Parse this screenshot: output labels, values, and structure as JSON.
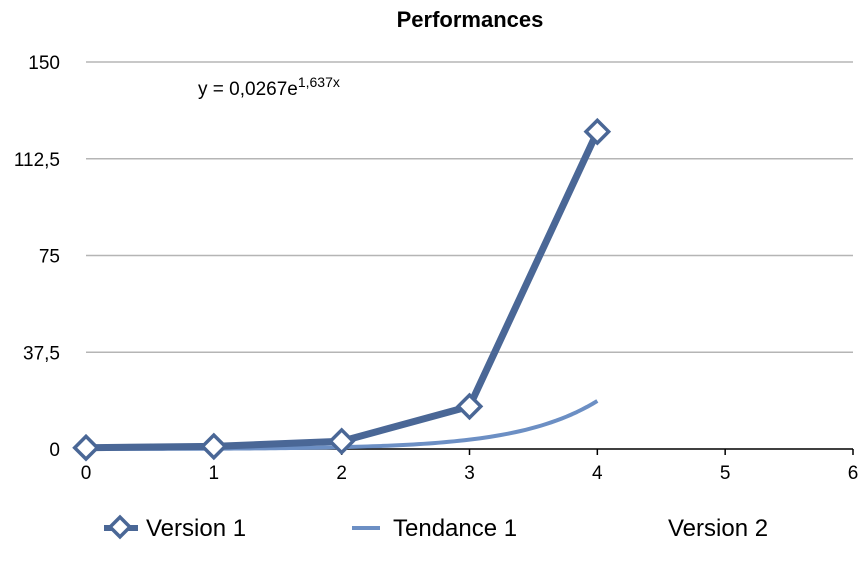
{
  "chart_data": {
    "type": "line",
    "title": "Performances",
    "xlim": [
      0,
      6
    ],
    "ylim": [
      0,
      150
    ],
    "x_ticks": [
      "0",
      "1",
      "2",
      "3",
      "4",
      "5",
      "6"
    ],
    "y_ticks": [
      "0",
      "37,5",
      "75",
      "112,5",
      "150"
    ],
    "grid": true,
    "legend_position": "bottom",
    "series": [
      {
        "name": "Version 1",
        "kind": "line-markers",
        "marker": "diamond",
        "color": "#4a6796",
        "x": [
          0,
          1,
          2,
          3,
          4
        ],
        "y": [
          0.5,
          1,
          3,
          16.5,
          123
        ]
      },
      {
        "name": "Tendance 1",
        "kind": "trendline",
        "color": "#6c8fc4",
        "equation": {
          "a": 0.0267,
          "b": 1.637
        },
        "x_range": [
          0,
          4
        ]
      },
      {
        "name": "Version 2",
        "kind": "empty",
        "x": [],
        "y": []
      }
    ],
    "annotation": {
      "prefix": "y = 0,0267e",
      "superscript": "1,637x"
    }
  }
}
